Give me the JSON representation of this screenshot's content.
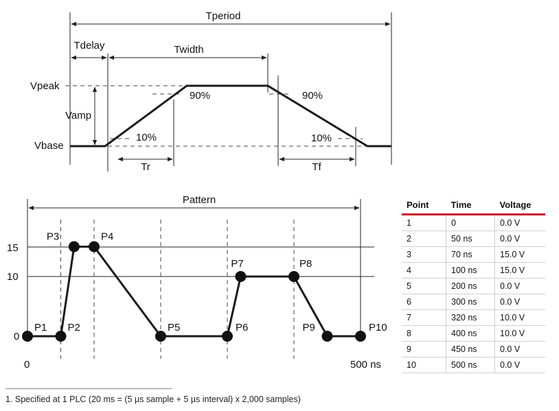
{
  "pulse_diagram": {
    "tperiod": "Tperiod",
    "tdelay": "Tdelay",
    "twidth": "Twidth",
    "vpeak": "Vpeak",
    "vamp": "Vamp",
    "vbase": "Vbase",
    "pct90_left": "90%",
    "pct90_right": "90%",
    "pct10_left": "10%",
    "pct10_right": "10%",
    "tr": "Tr",
    "tf": "Tf"
  },
  "pattern_chart": {
    "title": "Pattern",
    "y_ticks": [
      "15",
      "10",
      "0"
    ],
    "x_start": "0",
    "x_end": "500 ns",
    "points": [
      {
        "label": "P1",
        "time": 0,
        "voltage": 0
      },
      {
        "label": "P2",
        "time": 50,
        "voltage": 0
      },
      {
        "label": "P3",
        "time": 70,
        "voltage": 15
      },
      {
        "label": "P4",
        "time": 100,
        "voltage": 15
      },
      {
        "label": "P5",
        "time": 200,
        "voltage": 0
      },
      {
        "label": "P6",
        "time": 300,
        "voltage": 0
      },
      {
        "label": "P7",
        "time": 320,
        "voltage": 10
      },
      {
        "label": "P8",
        "time": 400,
        "voltage": 10
      },
      {
        "label": "P9",
        "time": 450,
        "voltage": 0
      },
      {
        "label": "P10",
        "time": 500,
        "voltage": 0
      }
    ]
  },
  "table": {
    "headers": [
      "Point",
      "Time",
      "Voltage"
    ],
    "rows": [
      [
        "1",
        "0",
        "0.0 V"
      ],
      [
        "2",
        "50 ns",
        "0.0 V"
      ],
      [
        "3",
        "70 ns",
        "15.0 V"
      ],
      [
        "4",
        "100 ns",
        "15.0 V"
      ],
      [
        "5",
        "200 ns",
        "0.0 V"
      ],
      [
        "6",
        "300 ns",
        "0.0 V"
      ],
      [
        "7",
        "320 ns",
        "10.0 V"
      ],
      [
        "8",
        "400 ns",
        "10.0 V"
      ],
      [
        "9",
        "450 ns",
        "0.0 V"
      ],
      [
        "10",
        "500 ns",
        "0.0 V"
      ]
    ]
  },
  "footnote": "1. Specified at 1 PLC (20 ms = (5 µs sample + 5 µs interval) x 2,000 samples)"
}
